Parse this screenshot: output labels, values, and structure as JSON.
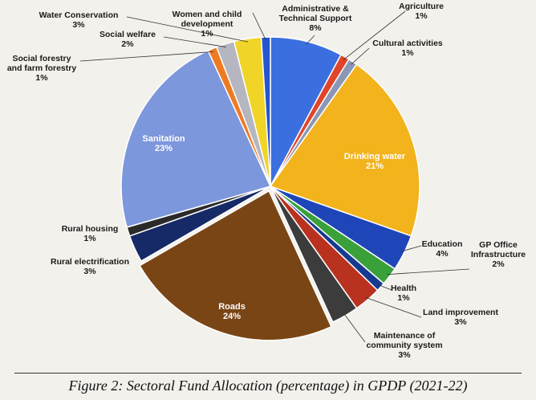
{
  "caption": "Figure 2: Sectoral Fund Allocation (percentage) in GPDP (2021-22)",
  "chart_data": {
    "type": "pie",
    "title": "",
    "slices": [
      {
        "label": "Administrative & Technical Support",
        "value": 8,
        "value_label": "8%",
        "color": "#3b6fe0"
      },
      {
        "label": "Agriculture",
        "value": 1,
        "value_label": "1%",
        "color": "#e0452c"
      },
      {
        "label": "Cultural activities",
        "value": 1,
        "value_label": "1%",
        "color": "#8a97b5"
      },
      {
        "label": "Drinking water",
        "value": 21,
        "value_label": "21%",
        "color": "#f2b31c"
      },
      {
        "label": "Education",
        "value": 4,
        "value_label": "4%",
        "color": "#1f46b8"
      },
      {
        "label": "GP Office Infrastructure",
        "value": 2,
        "value_label": "2%",
        "color": "#3aa03a"
      },
      {
        "label": "Health",
        "value": 1,
        "value_label": "1%",
        "color": "#163a8f"
      },
      {
        "label": "Land improvement",
        "value": 3,
        "value_label": "3%",
        "color": "#b8321f"
      },
      {
        "label": "Maintenance of community system",
        "value": 3,
        "value_label": "3%",
        "color": "#3c3c3c"
      },
      {
        "label": "Roads",
        "value": 24,
        "value_label": "24%",
        "color": "#7a4515"
      },
      {
        "label": "Rural electrification",
        "value": 3,
        "value_label": "3%",
        "color": "#152a66"
      },
      {
        "label": "Rural housing",
        "value": 1,
        "value_label": "1%",
        "color": "#2a2a2a"
      },
      {
        "label": "Sanitation",
        "value": 23,
        "value_label": "23%",
        "color": "#7d97dc"
      },
      {
        "label": "Social forestry and farm forestry",
        "value": 1,
        "value_label": "1%",
        "color": "#ee7a22"
      },
      {
        "label": "Social welfare",
        "value": 2,
        "value_label": "2%",
        "color": "#b6b6c0"
      },
      {
        "label": "Water Conservation",
        "value": 3,
        "value_label": "3%",
        "color": "#f0d427"
      },
      {
        "label": "Women and child development",
        "value": 1,
        "value_label": "1%",
        "color": "#2556d0"
      }
    ]
  }
}
